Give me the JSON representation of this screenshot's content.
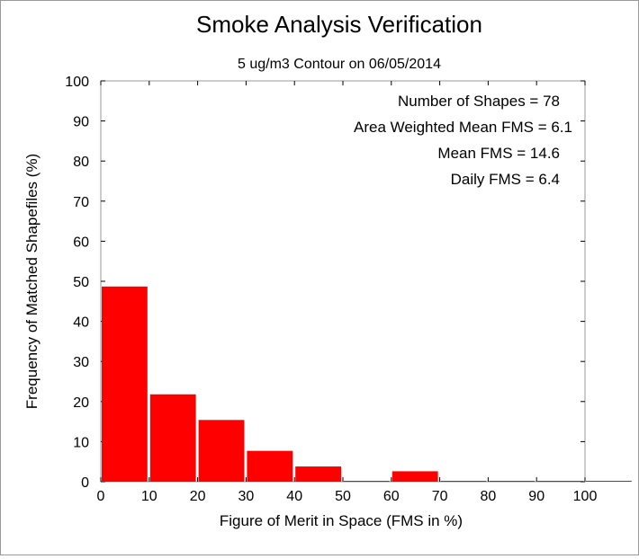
{
  "chart_data": {
    "type": "bar",
    "title": "Smoke Analysis Verification",
    "subtitle": "5 ug/m3 Contour on 06/05/2014",
    "xlabel": "Figure of Merit in Space (FMS in %)",
    "ylabel": "Frequency of Matched Shapefiles (%)",
    "xlim": [
      0,
      110
    ],
    "ylim": [
      0,
      100
    ],
    "x_ticks": [
      "0",
      "10",
      "20",
      "30",
      "40",
      "50",
      "60",
      "70",
      "80",
      "90",
      "100"
    ],
    "y_ticks": [
      "0",
      "10",
      "20",
      "30",
      "40",
      "50",
      "60",
      "70",
      "80",
      "90",
      "100"
    ],
    "bins": [
      {
        "from": 0,
        "to": 10,
        "value": 48.7
      },
      {
        "from": 10,
        "to": 20,
        "value": 21.8
      },
      {
        "from": 20,
        "to": 30,
        "value": 15.4
      },
      {
        "from": 30,
        "to": 40,
        "value": 7.7
      },
      {
        "from": 40,
        "to": 50,
        "value": 3.8
      },
      {
        "from": 50,
        "to": 60,
        "value": 0
      },
      {
        "from": 60,
        "to": 70,
        "value": 2.6
      },
      {
        "from": 70,
        "to": 80,
        "value": 0
      },
      {
        "from": 80,
        "to": 90,
        "value": 0
      },
      {
        "from": 90,
        "to": 100,
        "value": 0
      },
      {
        "from": 100,
        "to": 110,
        "value": 0
      }
    ],
    "bar_color": "#ff0000",
    "grid": false,
    "annotations": [
      "Number of Shapes = 78",
      "Area Weighted Mean FMS = 6.1",
      "Mean FMS = 14.6",
      "Daily FMS = 6.4"
    ]
  }
}
